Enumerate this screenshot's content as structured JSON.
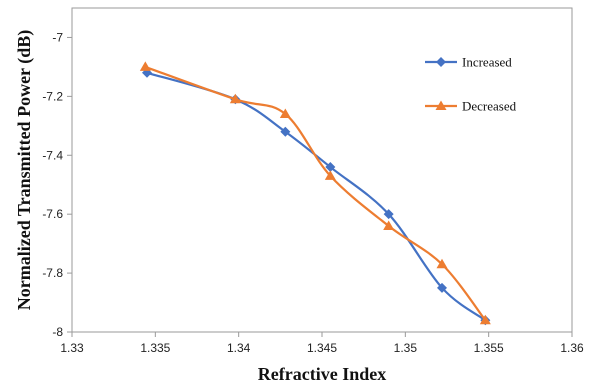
{
  "chart_data": {
    "type": "line",
    "title": "",
    "xlabel": "Refractive Index",
    "ylabel": "Normalized Transmitted Power (dB)",
    "xlim": [
      1.33,
      1.36
    ],
    "ylim": [
      -8,
      -6.9
    ],
    "xticks": [
      "1.33",
      "1.335",
      "1.34",
      "1.345",
      "1.35",
      "1.355",
      "1.36"
    ],
    "yticks": [
      "-7",
      "-7.2",
      "-7.4",
      "-7.6",
      "-7.8",
      "-8"
    ],
    "grid": false,
    "legend_position": "top-right",
    "series": [
      {
        "name": "Increased",
        "color": "#4472C4",
        "marker": "diamond",
        "x": [
          1.3345,
          1.3398,
          1.3428,
          1.3455,
          1.349,
          1.3522,
          1.3548
        ],
        "y": [
          -7.12,
          -7.21,
          -7.32,
          -7.44,
          -7.6,
          -7.85,
          -7.96
        ]
      },
      {
        "name": "Decreased",
        "color": "#ED7D31",
        "marker": "triangle",
        "x": [
          1.3344,
          1.3398,
          1.3428,
          1.3455,
          1.349,
          1.3522,
          1.3548
        ],
        "y": [
          -7.1,
          -7.21,
          -7.26,
          -7.47,
          -7.64,
          -7.77,
          -7.96
        ]
      }
    ]
  }
}
